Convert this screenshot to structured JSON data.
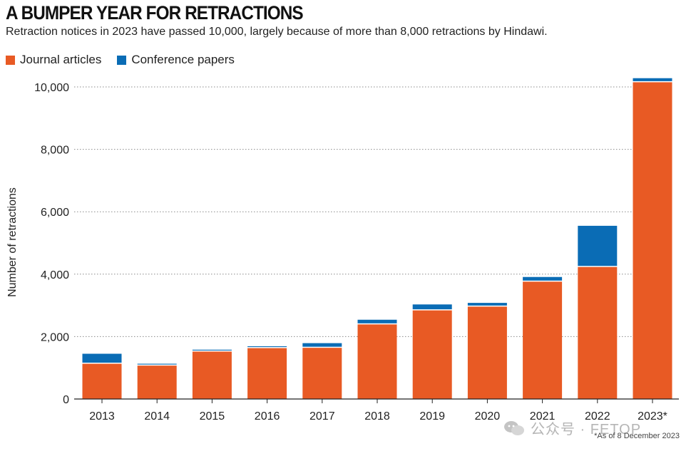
{
  "header": {
    "title": "A BUMPER YEAR FOR RETRACTIONS",
    "subtitle": "Retraction notices in 2023 have passed 10,000, largely because of more than 8,000 retractions by Hindawi."
  },
  "footnote": "*As of 8 December 2023",
  "watermark": "公众号 · FETOP",
  "colors": {
    "journal": "#e85a24",
    "conference": "#0a6cb5",
    "grid": "#8a8a8a"
  },
  "chart_data": {
    "type": "bar",
    "stacked": true,
    "title": "A BUMPER YEAR FOR RETRACTIONS",
    "ylabel": "Number of retractions",
    "xlabel": "",
    "ylim": [
      0,
      10500
    ],
    "yticks": [
      0,
      2000,
      4000,
      6000,
      8000,
      10000
    ],
    "ytick_labels": [
      "0",
      "2,000",
      "4,000",
      "6,000",
      "8,000",
      "10,000"
    ],
    "grid": "horizontal dotted",
    "legend_position": "top-left",
    "categories": [
      "2013",
      "2014",
      "2015",
      "2016",
      "2017",
      "2018",
      "2019",
      "2020",
      "2021",
      "2022",
      "2023*"
    ],
    "series": [
      {
        "name": "Journal articles",
        "values": [
          1130,
          1070,
          1520,
          1630,
          1640,
          2390,
          2840,
          2960,
          3760,
          4230,
          10150
        ]
      },
      {
        "name": "Conference papers",
        "values": [
          320,
          60,
          60,
          60,
          150,
          150,
          190,
          120,
          150,
          1320,
          130
        ]
      }
    ]
  }
}
